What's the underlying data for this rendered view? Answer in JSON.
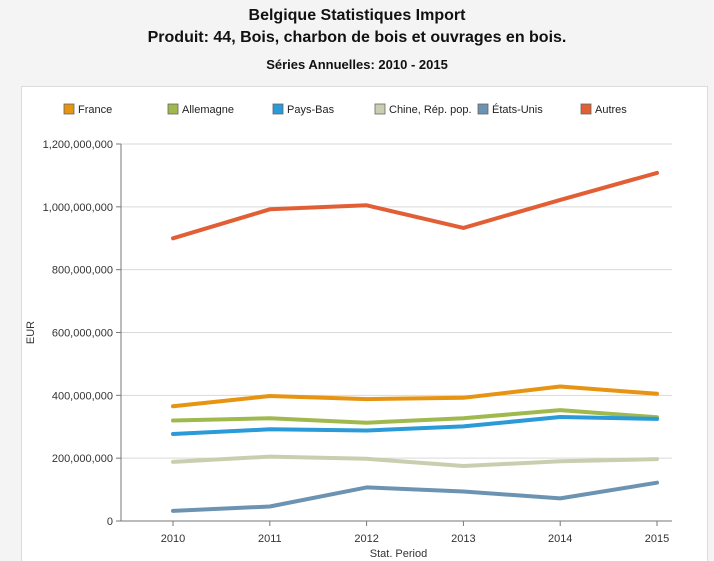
{
  "header": {
    "title": "Belgique Statistiques Import",
    "subtitle": "Produit: 44, Bois, charbon de bois et ouvrages en bois.",
    "series_info": "Séries Annuelles: 2010 - 2015"
  },
  "chart_data": {
    "type": "line",
    "x": [
      "2010",
      "2011",
      "2012",
      "2013",
      "2014",
      "2015"
    ],
    "xlabel": "Stat. Period",
    "ylabel": "EUR",
    "ylim": [
      0,
      1200000000
    ],
    "yticks": [
      0,
      200000000,
      400000000,
      600000000,
      800000000,
      1000000000,
      1200000000
    ],
    "ytick_labels": [
      "0",
      "200,000,000",
      "400,000,000",
      "600,000,000",
      "800,000,000",
      "1,000,000,000",
      "1,200,000,000"
    ],
    "grid": true,
    "legend_position": "top",
    "series": [
      {
        "name": "France",
        "color": "#e69412",
        "values": [
          365000000,
          398000000,
          388000000,
          392000000,
          428000000,
          405000000
        ]
      },
      {
        "name": "Allemagne",
        "color": "#9fb94e",
        "values": [
          320000000,
          327000000,
          313000000,
          327000000,
          353000000,
          330000000
        ]
      },
      {
        "name": "Pays-Bas",
        "color": "#2a9ad8",
        "values": [
          277000000,
          292000000,
          288000000,
          301000000,
          331000000,
          325000000
        ]
      },
      {
        "name": "Chine, Rép. pop.",
        "color": "#c9cfae",
        "values": [
          188000000,
          205000000,
          198000000,
          175000000,
          190000000,
          197000000
        ]
      },
      {
        "name": "États-Unis",
        "color": "#6c93b1",
        "values": [
          32000000,
          46000000,
          107000000,
          94000000,
          72000000,
          122000000
        ]
      },
      {
        "name": "Autres",
        "color": "#e25f36",
        "values": [
          900000000,
          992000000,
          1005000000,
          933000000,
          1022000000,
          1108000000
        ]
      }
    ]
  }
}
